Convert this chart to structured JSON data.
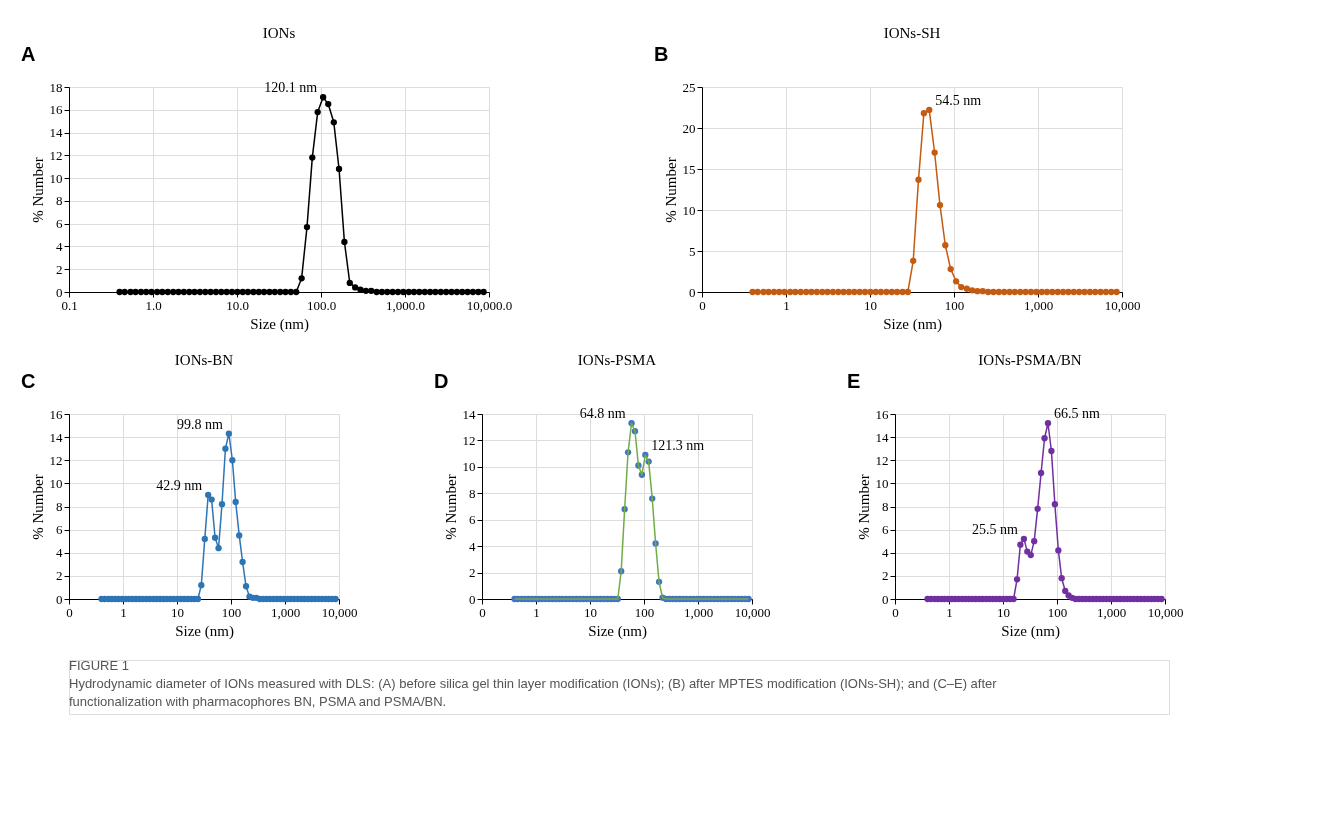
{
  "chart_data": [
    {
      "type": "line",
      "title": "IONs",
      "xlabel": "Size (nm)",
      "ylabel": "% Number",
      "log": "x",
      "grid": true,
      "marker": "circle",
      "line_style": "solid",
      "xlim": [
        0.1,
        10000
      ],
      "xticks": [
        {
          "value": 0.1,
          "label": "0.1"
        },
        {
          "value": 1,
          "label": "1.0"
        },
        {
          "value": 10,
          "label": "10.0"
        },
        {
          "value": 100,
          "label": "100.0"
        },
        {
          "value": 1000,
          "label": "1,000.0"
        },
        {
          "value": 10000,
          "label": "10,000.0"
        }
      ],
      "ylim": [
        0,
        18
      ],
      "yticks": [
        0,
        2,
        4,
        6,
        8,
        10,
        12,
        14,
        16,
        18
      ],
      "x": [
        0.4,
        0.46,
        0.54,
        0.62,
        0.72,
        0.83,
        0.96,
        1.12,
        1.29,
        1.5,
        1.74,
        2.01,
        2.33,
        2.7,
        3.12,
        3.62,
        4.19,
        4.85,
        5.62,
        6.5,
        7.53,
        8.72,
        10.1,
        11.7,
        13.5,
        15.7,
        18.2,
        21,
        24.4,
        28.2,
        32.7,
        37.8,
        43.8,
        50.7,
        58.8,
        68.1,
        78.8,
        91.3,
        106,
        122,
        142,
        164,
        190,
        220,
        255,
        295,
        342,
        396,
        459,
        531,
        615,
        712,
        825,
        955,
        1110,
        1280,
        1480,
        1720,
        1990,
        2300,
        2670,
        3090,
        3580,
        4150,
        4800,
        5560,
        6440,
        7460,
        8630
      ],
      "series": [
        {
          "color": "#000000",
          "values": [
            0,
            0,
            0,
            0,
            0,
            0,
            0,
            0,
            0,
            0,
            0,
            0,
            0,
            0,
            0,
            0,
            0,
            0,
            0,
            0,
            0,
            0,
            0,
            0,
            0,
            0,
            0,
            0,
            0,
            0,
            0,
            0,
            0,
            0,
            1.2,
            5.7,
            11.8,
            15.8,
            17.1,
            16.5,
            14.9,
            10.8,
            4.4,
            0.8,
            0.4,
            0.2,
            0.1,
            0.1,
            0,
            0,
            0,
            0,
            0,
            0,
            0,
            0,
            0,
            0,
            0,
            0,
            0,
            0,
            0,
            0,
            0,
            0,
            0,
            0,
            0
          ]
        }
      ],
      "annotations": [
        "A",
        {
          "text": "120.1 nm",
          "x": 106,
          "y": 17.1
        }
      ]
    },
    {
      "type": "line",
      "title": "IONs-SH",
      "xlabel": "Size (nm)",
      "ylabel": "% Number",
      "log": "x",
      "grid": true,
      "marker": "circle",
      "line_style": "solid",
      "xlim": [
        0.1,
        10000
      ],
      "xticks": [
        {
          "value": 0.1,
          "label": "0"
        },
        1,
        10,
        100,
        {
          "value": 1000,
          "label": "1,000"
        },
        {
          "value": 10000,
          "label": "10,000"
        }
      ],
      "ylim": [
        0,
        25
      ],
      "yticks": [
        0,
        5,
        10,
        15,
        20,
        25
      ],
      "x": [
        0.4,
        0.46,
        0.54,
        0.62,
        0.72,
        0.83,
        0.96,
        1.12,
        1.29,
        1.5,
        1.74,
        2.01,
        2.33,
        2.7,
        3.12,
        3.62,
        4.19,
        4.85,
        5.62,
        6.5,
        7.53,
        8.72,
        10.1,
        11.7,
        13.5,
        15.7,
        18.2,
        21,
        24.4,
        28.2,
        32.7,
        37.8,
        43.8,
        50.7,
        58.8,
        68.1,
        78.8,
        91.3,
        106,
        122,
        142,
        164,
        190,
        220,
        255,
        295,
        342,
        396,
        459,
        531,
        615,
        712,
        825,
        955,
        1110,
        1280,
        1480,
        1720,
        1990,
        2300,
        2670,
        3090,
        3580,
        4150,
        4800,
        5560,
        6440,
        7460,
        8630
      ],
      "series": [
        {
          "color": "#c55a11",
          "values": [
            0,
            0,
            0,
            0,
            0,
            0,
            0,
            0,
            0,
            0,
            0,
            0,
            0,
            0,
            0,
            0,
            0,
            0,
            0,
            0,
            0,
            0,
            0,
            0,
            0,
            0,
            0,
            0,
            0,
            0,
            3.8,
            13.7,
            21.8,
            22.2,
            17.0,
            10.6,
            5.7,
            2.8,
            1.3,
            0.6,
            0.4,
            0.2,
            0.1,
            0.1,
            0,
            0,
            0,
            0,
            0,
            0,
            0,
            0,
            0,
            0,
            0,
            0,
            0,
            0,
            0,
            0,
            0,
            0,
            0,
            0,
            0,
            0,
            0,
            0,
            0
          ]
        }
      ],
      "annotations": [
        "B",
        {
          "text": "54.5 nm",
          "x": 50.7,
          "y": 22.2
        }
      ]
    },
    {
      "type": "line",
      "title": "IONs-BN",
      "xlabel": "Size (nm)",
      "ylabel": "% Number",
      "log": "x",
      "grid": true,
      "marker": "circle",
      "line_style": "solid",
      "xlim": [
        0.1,
        10000
      ],
      "xticks": [
        {
          "value": 0.1,
          "label": "0"
        },
        1,
        10,
        100,
        {
          "value": 1000,
          "label": "1,000"
        },
        {
          "value": 10000,
          "label": "10,000"
        }
      ],
      "ylim": [
        0,
        16
      ],
      "yticks": [
        0,
        2,
        4,
        6,
        8,
        10,
        12,
        14,
        16
      ],
      "x": [
        0.4,
        0.46,
        0.54,
        0.62,
        0.72,
        0.83,
        0.96,
        1.12,
        1.29,
        1.5,
        1.74,
        2.01,
        2.33,
        2.7,
        3.12,
        3.62,
        4.19,
        4.85,
        5.62,
        6.5,
        7.53,
        8.72,
        10.1,
        11.7,
        13.5,
        15.7,
        18.2,
        21,
        24.4,
        28.2,
        32.7,
        37.8,
        43.8,
        50.7,
        58.8,
        68.1,
        78.8,
        91.3,
        106,
        122,
        142,
        164,
        190,
        220,
        255,
        295,
        342,
        396,
        459,
        531,
        615,
        712,
        825,
        955,
        1110,
        1280,
        1480,
        1720,
        1990,
        2300,
        2670,
        3090,
        3580,
        4150,
        4800,
        5560,
        6440,
        7460,
        8630
      ],
      "series": [
        {
          "color": "#2e75b6",
          "values": [
            0,
            0,
            0,
            0,
            0,
            0,
            0,
            0,
            0,
            0,
            0,
            0,
            0,
            0,
            0,
            0,
            0,
            0,
            0,
            0,
            0,
            0,
            0,
            0,
            0,
            0,
            0,
            0,
            0,
            1.2,
            5.2,
            9.0,
            8.6,
            5.3,
            4.4,
            8.2,
            13.0,
            14.3,
            12.0,
            8.4,
            5.5,
            3.2,
            1.1,
            0.2,
            0.1,
            0.1,
            0,
            0,
            0,
            0,
            0,
            0,
            0,
            0,
            0,
            0,
            0,
            0,
            0,
            0,
            0,
            0,
            0,
            0,
            0,
            0,
            0,
            0,
            0
          ]
        }
      ],
      "annotations": [
        "C",
        {
          "text": "99.8 nm",
          "x": 91.3,
          "y": 14.3
        },
        {
          "text": "42.9 nm",
          "x": 37.8,
          "y": 9.0
        }
      ]
    },
    {
      "type": "line",
      "title": "IONs-PSMA",
      "xlabel": "Size (nm)",
      "ylabel": "% Number",
      "log": "x",
      "grid": true,
      "marker": "circle",
      "line_style": "solid",
      "xlim": [
        0.1,
        10000
      ],
      "xticks": [
        {
          "value": 0.1,
          "label": "0"
        },
        1,
        10,
        100,
        {
          "value": 1000,
          "label": "1,000"
        },
        {
          "value": 10000,
          "label": "10,000"
        }
      ],
      "ylim": [
        0,
        14
      ],
      "yticks": [
        0,
        2,
        4,
        6,
        8,
        10,
        12,
        14
      ],
      "x": [
        0.4,
        0.46,
        0.54,
        0.62,
        0.72,
        0.83,
        0.96,
        1.12,
        1.29,
        1.5,
        1.74,
        2.01,
        2.33,
        2.7,
        3.12,
        3.62,
        4.19,
        4.85,
        5.62,
        6.5,
        7.53,
        8.72,
        10.1,
        11.7,
        13.5,
        15.7,
        18.2,
        21,
        24.4,
        28.2,
        32.7,
        37.8,
        43.8,
        50.7,
        58.8,
        68.1,
        78.8,
        91.3,
        106,
        122,
        142,
        164,
        190,
        220,
        255,
        295,
        342,
        396,
        459,
        531,
        615,
        712,
        825,
        955,
        1110,
        1280,
        1480,
        1720,
        1990,
        2300,
        2670,
        3090,
        3580,
        4150,
        4800,
        5560,
        6440,
        7460,
        8630
      ],
      "series": [
        {
          "type": "line",
          "marker": "none",
          "color": "#70ad47",
          "values": [
            0,
            0,
            0,
            0,
            0,
            0,
            0,
            0,
            0,
            0,
            0,
            0,
            0,
            0,
            0,
            0,
            0,
            0,
            0,
            0,
            0,
            0,
            0,
            0,
            0,
            0,
            0,
            0,
            0,
            0,
            0,
            2.1,
            6.8,
            11.1,
            13.3,
            12.7,
            10.1,
            9.4,
            10.9,
            10.4,
            7.6,
            4.2,
            1.3,
            0.1,
            0,
            0,
            0,
            0,
            0,
            0,
            0,
            0,
            0,
            0,
            0,
            0,
            0,
            0,
            0,
            0,
            0,
            0,
            0,
            0,
            0,
            0,
            0,
            0,
            0
          ]
        },
        {
          "type": "scatter",
          "color": "#4472c4",
          "values": [
            0,
            0,
            0,
            0,
            0,
            0,
            0,
            0,
            0,
            0,
            0,
            0,
            0,
            0,
            0,
            0,
            0,
            0,
            0,
            0,
            0,
            0,
            0,
            0,
            0,
            0,
            0,
            0,
            0,
            0,
            0,
            2.1,
            6.8,
            11.1,
            13.3,
            12.7,
            10.1,
            9.4,
            10.9,
            10.4,
            7.6,
            4.2,
            1.3,
            0.1,
            0,
            0,
            0,
            0,
            0,
            0,
            0,
            0,
            0,
            0,
            0,
            0,
            0,
            0,
            0,
            0,
            0,
            0,
            0,
            0,
            0,
            0,
            0,
            0,
            0
          ]
        }
      ],
      "annotations": [
        "D",
        {
          "text": "64.8 nm",
          "x": 58.8,
          "y": 13.3
        },
        {
          "text": "121.3 nm",
          "x": 106,
          "y": 10.9
        }
      ]
    },
    {
      "type": "line",
      "title": "IONs-PSMA/BN",
      "xlabel": "Size (nm)",
      "ylabel": "% Number",
      "log": "x",
      "grid": true,
      "marker": "circle",
      "line_style": "solid",
      "xlim": [
        0.1,
        10000
      ],
      "xticks": [
        {
          "value": 0.1,
          "label": "0"
        },
        1,
        10,
        100,
        {
          "value": 1000,
          "label": "1,000"
        },
        {
          "value": 10000,
          "label": "10,000"
        }
      ],
      "ylim": [
        0,
        16
      ],
      "yticks": [
        0,
        2,
        4,
        6,
        8,
        10,
        12,
        14,
        16
      ],
      "x": [
        0.4,
        0.46,
        0.54,
        0.62,
        0.72,
        0.83,
        0.96,
        1.12,
        1.29,
        1.5,
        1.74,
        2.01,
        2.33,
        2.7,
        3.12,
        3.62,
        4.19,
        4.85,
        5.62,
        6.5,
        7.53,
        8.72,
        10.1,
        11.7,
        13.5,
        15.7,
        18.2,
        21,
        24.4,
        28.2,
        32.7,
        37.8,
        43.8,
        50.7,
        58.8,
        68.1,
        78.8,
        91.3,
        106,
        122,
        142,
        164,
        190,
        220,
        255,
        295,
        342,
        396,
        459,
        531,
        615,
        712,
        825,
        955,
        1110,
        1280,
        1480,
        1720,
        1990,
        2300,
        2670,
        3090,
        3580,
        4150,
        4800,
        5560,
        6440,
        7460,
        8630
      ],
      "series": [
        {
          "color": "#7030a0",
          "values": [
            0,
            0,
            0,
            0,
            0,
            0,
            0,
            0,
            0,
            0,
            0,
            0,
            0,
            0,
            0,
            0,
            0,
            0,
            0,
            0,
            0,
            0,
            0,
            0,
            0,
            0,
            1.7,
            4.7,
            5.2,
            4.1,
            3.8,
            5.0,
            7.8,
            10.9,
            13.9,
            15.2,
            12.8,
            8.2,
            4.2,
            1.8,
            0.7,
            0.3,
            0.1,
            0,
            0,
            0,
            0,
            0,
            0,
            0,
            0,
            0,
            0,
            0,
            0,
            0,
            0,
            0,
            0,
            0,
            0,
            0,
            0,
            0,
            0,
            0,
            0,
            0,
            0
          ]
        }
      ],
      "annotations": [
        "E",
        {
          "text": "66.5 nm",
          "x": 68.1,
          "y": 15.2
        },
        {
          "text": "25.5 nm",
          "x": 24.4,
          "y": 5.2
        },
        "FIGURE 1",
        "Hydrodynamic diameter of IONs measured with DLS: (A) before silica gel thin layer modification (IONs); (B) after MPTES modification (IONs-SH); and (C–E) after functionalization with pharmacophores BN, PSMA and PSMA/BN."
      ]
    }
  ]
}
